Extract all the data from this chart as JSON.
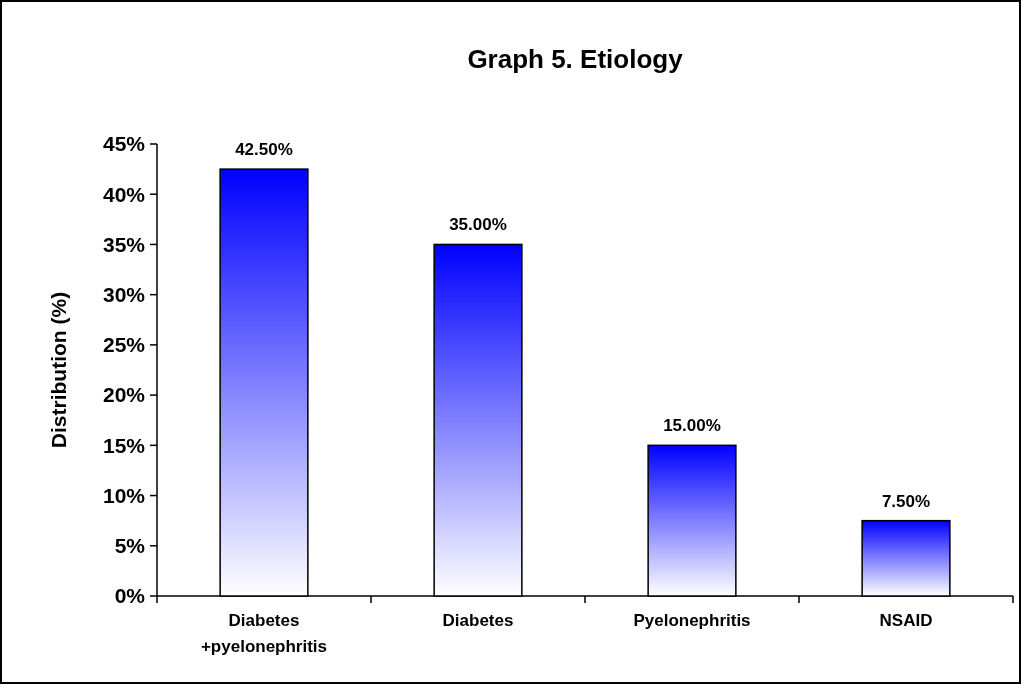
{
  "chart_data": {
    "type": "bar",
    "title": "Graph 5. Etiology",
    "ylabel": "Distribution (%)",
    "categories": [
      "Diabetes +pyelonephritis",
      "Diabetes",
      "Pyelonephritis",
      "NSAID"
    ],
    "values": [
      42.5,
      35,
      15,
      7.5
    ],
    "value_labels": [
      "42.50%",
      "35.00%",
      "15.00%",
      "7.50%"
    ],
    "color": "#0000ff",
    "ylim": [
      0,
      45
    ],
    "yticks": [
      {
        "value": 0,
        "label": "0%"
      },
      {
        "value": 5,
        "label": "5%"
      },
      {
        "value": 10,
        "label": "10%"
      },
      {
        "value": 15,
        "label": "15%"
      },
      {
        "value": 20,
        "label": "20%"
      },
      {
        "value": 25,
        "label": "25%"
      },
      {
        "value": 30,
        "label": "30%"
      },
      {
        "value": 35,
        "label": "35%"
      },
      {
        "value": 40,
        "label": "40%"
      },
      {
        "value": 45,
        "label": "45%"
      }
    ],
    "grid": false
  }
}
